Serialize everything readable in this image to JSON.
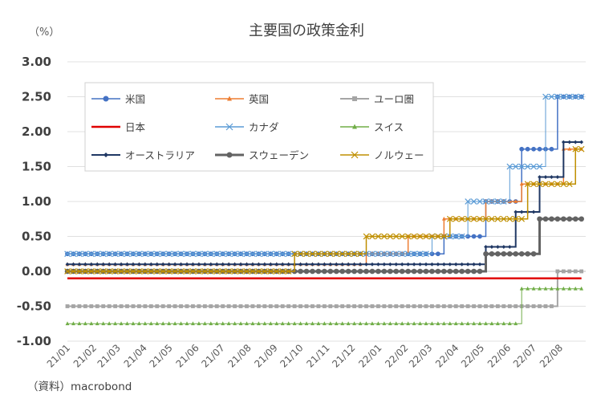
{
  "chart_data": {
    "type": "line",
    "title": "主要国の政策金利",
    "ylabel": "（%）",
    "source": "（資料）macrobond",
    "ylim": [
      -1.0,
      3.0
    ],
    "yticks": [
      "3.00",
      "2.50",
      "2.00",
      "1.50",
      "1.00",
      "0.50",
      "0.00",
      "-0.50",
      "-1.00"
    ],
    "x_range": [
      "2021-01-01",
      "2022-08-31"
    ],
    "xticks": [
      "21/01",
      "21/02",
      "21/03",
      "21/04",
      "21/05",
      "21/06",
      "21/07",
      "21/08",
      "21/09",
      "21/10",
      "21/11",
      "21/12",
      "22/01",
      "22/02",
      "22/03",
      "22/04",
      "22/05",
      "22/06",
      "22/07",
      "22/08"
    ],
    "series": [
      {
        "name": "米国",
        "color": "#4472C4",
        "marker": "circle",
        "width": 1.5,
        "steps": [
          [
            "2021-01-01",
            0.25
          ],
          [
            "2022-03-17",
            0.5
          ],
          [
            "2022-05-05",
            1.0
          ],
          [
            "2022-06-16",
            1.75
          ],
          [
            "2022-07-28",
            2.5
          ]
        ]
      },
      {
        "name": "英国",
        "color": "#ED7D31",
        "marker": "triangle",
        "width": 1.5,
        "steps": [
          [
            "2021-01-01",
            0.1
          ],
          [
            "2021-12-16",
            0.25
          ],
          [
            "2022-02-03",
            0.5
          ],
          [
            "2022-03-17",
            0.75
          ],
          [
            "2022-05-05",
            1.0
          ],
          [
            "2022-06-16",
            1.25
          ],
          [
            "2022-08-04",
            1.75
          ]
        ]
      },
      {
        "name": "ユーロ圏",
        "color": "#A5A5A5",
        "marker": "square",
        "width": 2,
        "steps": [
          [
            "2021-01-01",
            -0.5
          ],
          [
            "2022-07-27",
            0.0
          ]
        ]
      },
      {
        "name": "日本",
        "color": "#E00000",
        "marker": "none",
        "width": 2.5,
        "steps": [
          [
            "2021-01-01",
            -0.1
          ]
        ]
      },
      {
        "name": "カナダ",
        "color": "#5B9BD5",
        "marker": "x",
        "width": 1,
        "steps": [
          [
            "2021-01-01",
            0.25
          ],
          [
            "2022-03-02",
            0.5
          ],
          [
            "2022-04-13",
            1.0
          ],
          [
            "2022-06-01",
            1.5
          ],
          [
            "2022-07-13",
            2.5
          ]
        ]
      },
      {
        "name": "スイス",
        "color": "#70AD47",
        "marker": "triangle",
        "width": 1,
        "steps": [
          [
            "2021-01-01",
            -0.75
          ],
          [
            "2022-06-16",
            -0.25
          ]
        ]
      },
      {
        "name": "オーストラリア",
        "color": "#203864",
        "marker": "diamond",
        "width": 2,
        "steps": [
          [
            "2021-01-01",
            0.1
          ],
          [
            "2022-05-03",
            0.35
          ],
          [
            "2022-06-07",
            0.85
          ],
          [
            "2022-07-05",
            1.35
          ],
          [
            "2022-08-02",
            1.85
          ]
        ]
      },
      {
        "name": "スウェーデン",
        "color": "#636363",
        "marker": "circle",
        "width": 3,
        "steps": [
          [
            "2021-01-01",
            0.0
          ],
          [
            "2022-05-04",
            0.25
          ],
          [
            "2022-07-05",
            0.75
          ]
        ]
      },
      {
        "name": "ノルウェー",
        "color": "#BF8F00",
        "marker": "x",
        "width": 1.5,
        "steps": [
          [
            "2021-01-01",
            0.0
          ],
          [
            "2021-09-24",
            0.25
          ],
          [
            "2021-12-17",
            0.5
          ],
          [
            "2022-03-25",
            0.75
          ],
          [
            "2022-06-24",
            1.25
          ],
          [
            "2022-08-19",
            1.75
          ]
        ]
      }
    ]
  }
}
